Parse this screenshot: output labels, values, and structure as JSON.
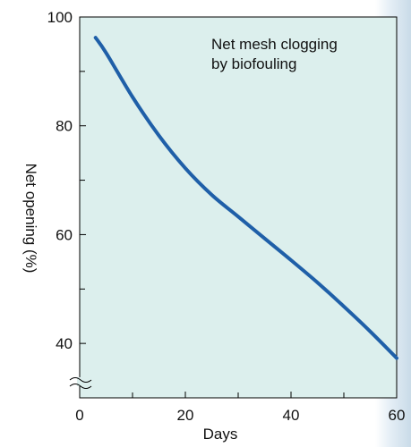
{
  "chart_data": {
    "type": "line",
    "title": "",
    "xlabel": "Days",
    "ylabel": "Net opening (%)",
    "annotation": [
      "Net mesh clogging",
      "by biofouling"
    ],
    "xlim": [
      0,
      60
    ],
    "ylim": [
      30,
      100
    ],
    "x_major_ticks": [
      0,
      20,
      40,
      60
    ],
    "x_minor_ticks": [
      10,
      30,
      50
    ],
    "y_major_ticks": [
      40,
      60,
      80,
      100
    ],
    "y_minor_ticks": [
      50,
      70,
      90
    ],
    "x_tick_labels": [
      "0",
      "20",
      "40",
      "60"
    ],
    "y_tick_labels": [
      "40",
      "60",
      "80",
      "100"
    ],
    "axis_break_on_y": true,
    "grid": false,
    "series": [
      {
        "x": [
          3,
          5,
          10,
          15,
          20,
          25,
          30,
          35,
          40,
          45,
          50,
          55,
          60
        ],
        "y": [
          96.2,
          93.4,
          85.3,
          78.2,
          72.2,
          67.3,
          63.3,
          59.3,
          55.3,
          51.2,
          46.8,
          42.2,
          37.3
        ]
      }
    ],
    "colors": {
      "line": "#1f5fa8",
      "plot_background": "#dcefed",
      "axis": "#000000",
      "side_glow": "#c9dbe8"
    }
  }
}
